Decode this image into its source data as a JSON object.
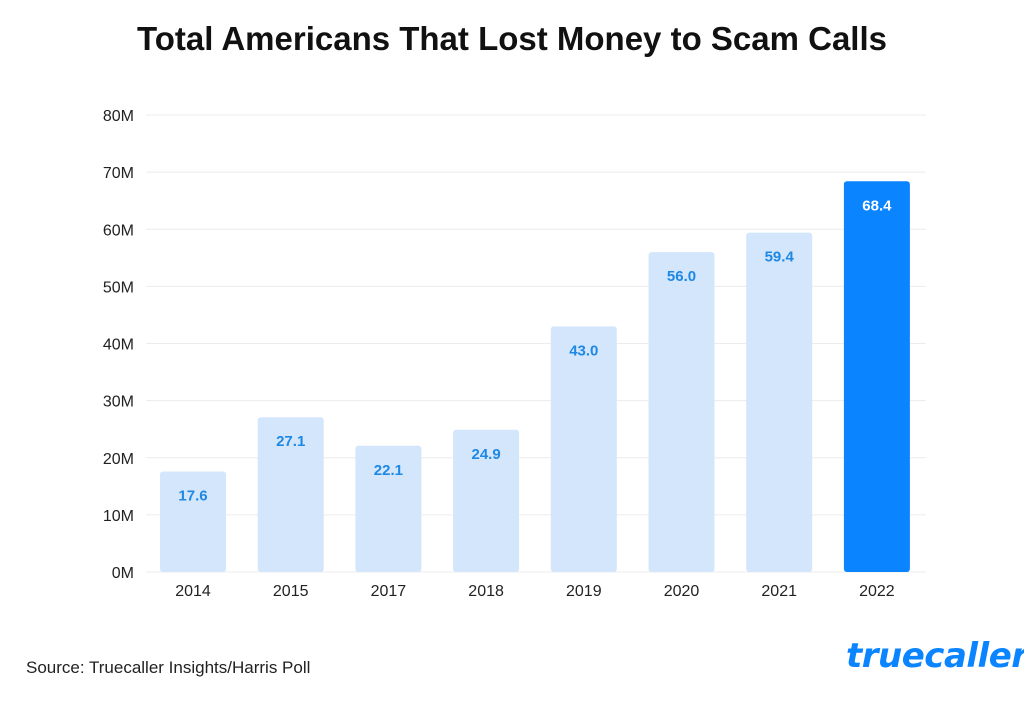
{
  "title": "Total Americans That Lost Money to Scam Calls",
  "source": "Source: Truecaller Insights/Harris Poll",
  "logo_text": "truecaller",
  "colors": {
    "bar_light": "#d3e6fb",
    "bar_highlight": "#0a84ff",
    "label_on_light": "#1e88e5",
    "label_on_highlight": "#ffffff",
    "grid": "#ececec",
    "brand": "#0a84ff"
  },
  "chart_data": {
    "type": "bar",
    "title": "Total Americans That Lost Money to Scam Calls",
    "xlabel": "",
    "ylabel": "",
    "categories": [
      "2014",
      "2015",
      "2017",
      "2018",
      "2019",
      "2020",
      "2021",
      "2022"
    ],
    "values": [
      17.6,
      27.1,
      22.1,
      24.9,
      43.0,
      56.0,
      59.4,
      68.4
    ],
    "value_labels": [
      "17.6",
      "27.1",
      "22.1",
      "24.9",
      "43.0",
      "56.0",
      "59.4",
      "68.4"
    ],
    "ylim": [
      0,
      80
    ],
    "yticks": [
      0,
      10,
      20,
      30,
      40,
      50,
      60,
      70,
      80
    ],
    "ytick_labels": [
      "0M",
      "10M",
      "20M",
      "30M",
      "40M",
      "50M",
      "60M",
      "70M",
      "80M"
    ],
    "highlight_category": "2022",
    "grid": true,
    "legend": "none"
  }
}
